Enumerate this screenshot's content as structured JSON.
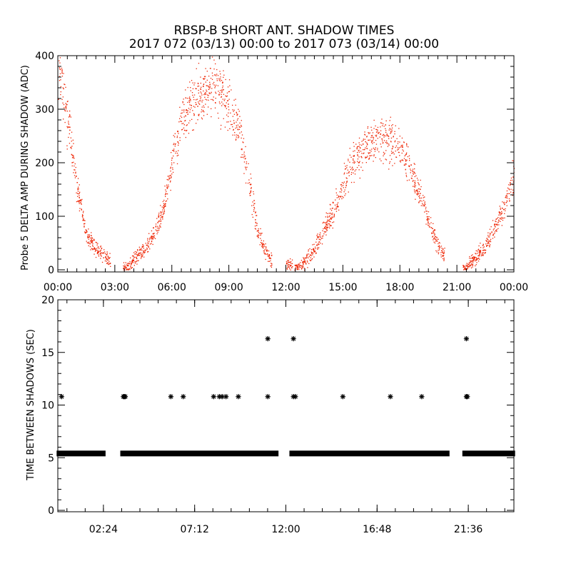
{
  "title": {
    "line1": "RBSP-B SHORT ANT. SHADOW TIMES",
    "line2": "2017 072 (03/13) 00:00 to 2017 073 (03/14) 00:00"
  },
  "colors": {
    "scatter": "#ee2200",
    "axes": "#000000",
    "background": "#ffffff"
  },
  "chart_data": [
    {
      "type": "scatter",
      "ylabel": "Probe 5 DELTA AMP DURING SHADOW (ADC)",
      "xlabel": "",
      "xunit": "hours",
      "xlim": [
        0,
        24
      ],
      "ylim": [
        0,
        400
      ],
      "x_tick_labels": [
        "00:00",
        "03:00",
        "06:00",
        "09:00",
        "12:00",
        "15:00",
        "18:00",
        "21:00",
        "00:00"
      ],
      "y_tick_labels": [
        "0",
        "100",
        "200",
        "300",
        "400"
      ],
      "marker": "dot",
      "series_description_points": [
        {
          "x": 0.0,
          "y": 400
        },
        {
          "x": 0.3,
          "y": 330
        },
        {
          "x": 0.7,
          "y": 230
        },
        {
          "x": 1.0,
          "y": 150
        },
        {
          "x": 1.5,
          "y": 65
        },
        {
          "x": 2.0,
          "y": 40
        },
        {
          "x": 2.5,
          "y": 25
        },
        {
          "x": 3.6,
          "y": 2
        },
        {
          "x": 4.0,
          "y": 20
        },
        {
          "x": 4.5,
          "y": 40
        },
        {
          "x": 5.0,
          "y": 60
        },
        {
          "x": 5.5,
          "y": 110
        },
        {
          "x": 6.0,
          "y": 200
        },
        {
          "x": 6.5,
          "y": 280
        },
        {
          "x": 7.0,
          "y": 310
        },
        {
          "x": 7.5,
          "y": 330
        },
        {
          "x": 8.0,
          "y": 340
        },
        {
          "x": 8.5,
          "y": 335
        },
        {
          "x": 9.0,
          "y": 310
        },
        {
          "x": 9.5,
          "y": 270
        },
        {
          "x": 10.0,
          "y": 180
        },
        {
          "x": 10.5,
          "y": 70
        },
        {
          "x": 11.0,
          "y": 30
        },
        {
          "x": 11.2,
          "y": 20
        },
        {
          "x": 12.5,
          "y": 5
        },
        {
          "x": 13.0,
          "y": 15
        },
        {
          "x": 13.5,
          "y": 40
        },
        {
          "x": 14.0,
          "y": 75
        },
        {
          "x": 14.5,
          "y": 110
        },
        {
          "x": 15.0,
          "y": 160
        },
        {
          "x": 15.5,
          "y": 200
        },
        {
          "x": 16.0,
          "y": 225
        },
        {
          "x": 16.5,
          "y": 240
        },
        {
          "x": 17.0,
          "y": 245
        },
        {
          "x": 17.5,
          "y": 240
        },
        {
          "x": 18.0,
          "y": 225
        },
        {
          "x": 18.5,
          "y": 195
        },
        {
          "x": 19.0,
          "y": 150
        },
        {
          "x": 19.5,
          "y": 90
        },
        {
          "x": 20.0,
          "y": 45
        },
        {
          "x": 20.3,
          "y": 30
        },
        {
          "x": 21.4,
          "y": 2
        },
        {
          "x": 22.0,
          "y": 25
        },
        {
          "x": 22.5,
          "y": 45
        },
        {
          "x": 23.0,
          "y": 80
        },
        {
          "x": 23.5,
          "y": 120
        },
        {
          "x": 24.0,
          "y": 180
        }
      ],
      "data_gaps_hours": [
        [
          2.75,
          3.4
        ],
        [
          11.25,
          12.0
        ],
        [
          20.35,
          21.3
        ]
      ]
    },
    {
      "type": "scatter",
      "ylabel": "TIME BETWEEN SHADOWS (SEC)",
      "xlabel": "",
      "xunit": "hours",
      "xlim": [
        0,
        24
      ],
      "ylim": [
        0,
        20
      ],
      "x_tick_labels": [
        "02:24",
        "07:12",
        "12:00",
        "16:48",
        "21:36"
      ],
      "y_tick_labels": [
        "0",
        "5",
        "10",
        "15",
        "20"
      ],
      "marker": "asterisk",
      "baseline_segments": [
        {
          "x_start": 0.05,
          "x_end": 2.4,
          "y": 5.4
        },
        {
          "x_start": 3.4,
          "x_end": 11.5,
          "y": 5.4
        },
        {
          "x_start": 12.3,
          "x_end": 20.5,
          "y": 5.4
        },
        {
          "x_start": 21.4,
          "x_end": 23.95,
          "y": 5.4
        }
      ],
      "outliers": [
        {
          "x": 0.2,
          "y": 10.8
        },
        {
          "x": 3.45,
          "y": 10.8
        },
        {
          "x": 3.5,
          "y": 10.8
        },
        {
          "x": 3.55,
          "y": 10.8
        },
        {
          "x": 5.95,
          "y": 10.8
        },
        {
          "x": 6.6,
          "y": 10.8
        },
        {
          "x": 8.2,
          "y": 10.8
        },
        {
          "x": 8.5,
          "y": 10.8
        },
        {
          "x": 8.65,
          "y": 10.8
        },
        {
          "x": 8.85,
          "y": 10.8
        },
        {
          "x": 9.5,
          "y": 10.8
        },
        {
          "x": 11.05,
          "y": 16.3
        },
        {
          "x": 11.05,
          "y": 10.8
        },
        {
          "x": 12.4,
          "y": 16.3
        },
        {
          "x": 12.4,
          "y": 10.8
        },
        {
          "x": 12.5,
          "y": 10.8
        },
        {
          "x": 15.0,
          "y": 10.8
        },
        {
          "x": 17.5,
          "y": 10.8
        },
        {
          "x": 19.15,
          "y": 10.8
        },
        {
          "x": 21.5,
          "y": 16.3
        },
        {
          "x": 21.5,
          "y": 10.8
        },
        {
          "x": 21.55,
          "y": 10.8
        }
      ]
    }
  ]
}
